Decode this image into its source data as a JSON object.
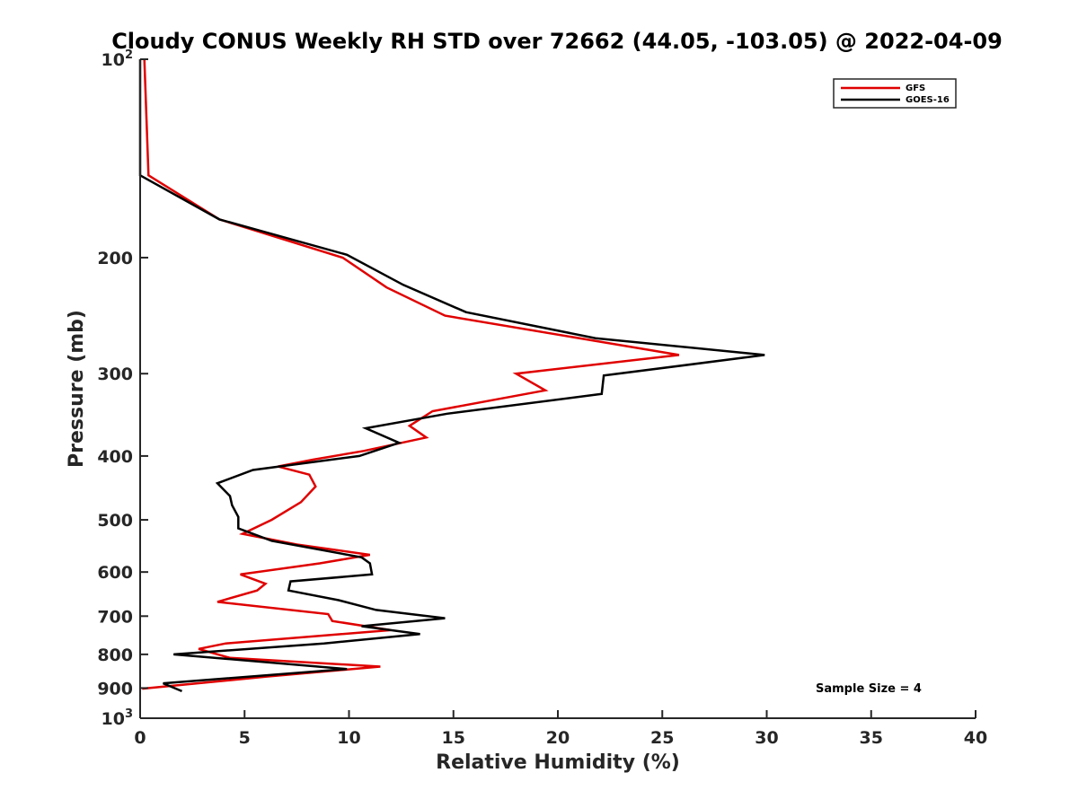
{
  "chart_data": {
    "type": "line",
    "title": "Cloudy CONUS Weekly RH STD over 72662 (44.05, -103.05) @ 2022-04-09",
    "xlabel": "Relative Humidity (%)",
    "ylabel": "Pressure (mb)",
    "xlim": [
      0,
      40
    ],
    "ylim": [
      100,
      1000
    ],
    "y_scale": "log",
    "y_reversed": true,
    "grid": false,
    "legend_position": "top-right",
    "x_ticks": [
      0,
      5,
      10,
      15,
      20,
      25,
      30,
      35,
      40
    ],
    "y_ticks": [
      {
        "value": 100,
        "base": "10",
        "exp": "2"
      },
      {
        "value": 200,
        "label": "200"
      },
      {
        "value": 300,
        "label": "300"
      },
      {
        "value": 400,
        "label": "400"
      },
      {
        "value": 500,
        "label": "500"
      },
      {
        "value": 600,
        "label": "600"
      },
      {
        "value": 700,
        "label": "700"
      },
      {
        "value": 800,
        "label": "800"
      },
      {
        "value": 900,
        "label": "900"
      },
      {
        "value": 1000,
        "base": "10",
        "exp": "3"
      }
    ],
    "series": [
      {
        "name": "GFS",
        "color": "#e00000",
        "points": [
          [
            0.2,
            100
          ],
          [
            0.4,
            150
          ],
          [
            3.8,
            175
          ],
          [
            9.7,
            200
          ],
          [
            11.8,
            222
          ],
          [
            14.6,
            245
          ],
          [
            25.8,
            281
          ],
          [
            18.0,
            300
          ],
          [
            19.4,
            318
          ],
          [
            14.0,
            342
          ],
          [
            12.9,
            360
          ],
          [
            13.7,
            375
          ],
          [
            10.7,
            393
          ],
          [
            8.3,
            405
          ],
          [
            6.6,
            415
          ],
          [
            8.1,
            427
          ],
          [
            8.4,
            445
          ],
          [
            7.7,
            470
          ],
          [
            6.3,
            500
          ],
          [
            4.9,
            525
          ],
          [
            7.5,
            545
          ],
          [
            11.0,
            565
          ],
          [
            8.6,
            582
          ],
          [
            4.8,
            605
          ],
          [
            6.0,
            625
          ],
          [
            5.6,
            640
          ],
          [
            3.7,
            666
          ],
          [
            9.0,
            695
          ],
          [
            9.2,
            712
          ],
          [
            12.0,
            735
          ],
          [
            4.1,
            770
          ],
          [
            2.8,
            785
          ],
          [
            4.3,
            810
          ],
          [
            11.5,
            835
          ],
          [
            6.0,
            865
          ],
          [
            0.1,
            902
          ]
        ]
      },
      {
        "name": "GOES-16",
        "color": "#000000",
        "points": [
          [
            0.0,
            100
          ],
          [
            0.0,
            150
          ],
          [
            3.8,
            175
          ],
          [
            9.9,
            198
          ],
          [
            12.6,
            220
          ],
          [
            15.6,
            242
          ],
          [
            21.8,
            265
          ],
          [
            29.9,
            281
          ],
          [
            22.2,
            302
          ],
          [
            22.1,
            322
          ],
          [
            14.7,
            345
          ],
          [
            10.8,
            363
          ],
          [
            12.4,
            382
          ],
          [
            10.5,
            400
          ],
          [
            5.4,
            420
          ],
          [
            3.7,
            440
          ],
          [
            4.3,
            460
          ],
          [
            4.4,
            475
          ],
          [
            4.7,
            495
          ],
          [
            4.7,
            515
          ],
          [
            6.3,
            538
          ],
          [
            10.6,
            570
          ],
          [
            11.0,
            582
          ],
          [
            11.1,
            605
          ],
          [
            7.2,
            620
          ],
          [
            7.1,
            640
          ],
          [
            9.5,
            662
          ],
          [
            11.3,
            685
          ],
          [
            14.6,
            705
          ],
          [
            10.6,
            725
          ],
          [
            13.4,
            745
          ],
          [
            8.8,
            770
          ],
          [
            1.6,
            800
          ],
          [
            9.9,
            842
          ],
          [
            1.1,
            885
          ],
          [
            2.0,
            910
          ]
        ]
      }
    ],
    "annotations": [
      "Sample Size = 4"
    ]
  }
}
